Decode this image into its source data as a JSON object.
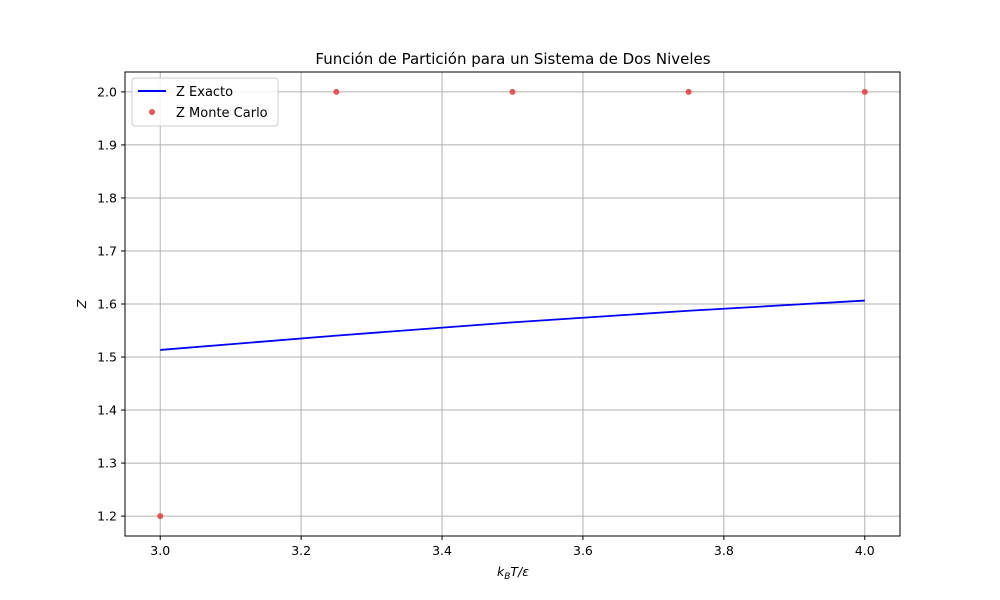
{
  "chart_data": {
    "type": "line",
    "title": "Función de Partición para un Sistema de Dos Niveles",
    "xlabel": "k_BT/ε",
    "xlabel_parts": {
      "k": "k",
      "sub": "B",
      "rest": "T/ε"
    },
    "ylabel": "Z",
    "xlim": [
      2.95,
      4.05
    ],
    "ylim": [
      1.1625,
      2.0375
    ],
    "xticks": [
      3.0,
      3.2,
      3.4,
      3.6,
      3.8,
      4.0
    ],
    "yticks": [
      1.2,
      1.3,
      1.4,
      1.5,
      1.6,
      1.7,
      1.8,
      1.9,
      2.0
    ],
    "xtick_labels": [
      "3.0",
      "3.2",
      "3.4",
      "3.6",
      "3.8",
      "4.0"
    ],
    "ytick_labels": [
      "1.2",
      "1.3",
      "1.4",
      "1.5",
      "1.6",
      "1.7",
      "1.8",
      "1.9",
      "2.0"
    ],
    "grid": true,
    "legend_position": "top-left",
    "series": [
      {
        "name": "Z Exacto",
        "kind": "line",
        "color": "#0000ff",
        "x": [
          3.0,
          3.25,
          3.5,
          3.75,
          4.0
        ],
        "y": [
          1.5134,
          1.5404,
          1.5654,
          1.5872,
          1.6065
        ]
      },
      {
        "name": "Z Monte Carlo",
        "kind": "scatter",
        "color": "#e8433f",
        "x": [
          3.0,
          3.25,
          3.5,
          3.75,
          4.0
        ],
        "y": [
          1.2,
          2.0,
          2.0,
          2.0,
          2.0
        ]
      }
    ]
  }
}
